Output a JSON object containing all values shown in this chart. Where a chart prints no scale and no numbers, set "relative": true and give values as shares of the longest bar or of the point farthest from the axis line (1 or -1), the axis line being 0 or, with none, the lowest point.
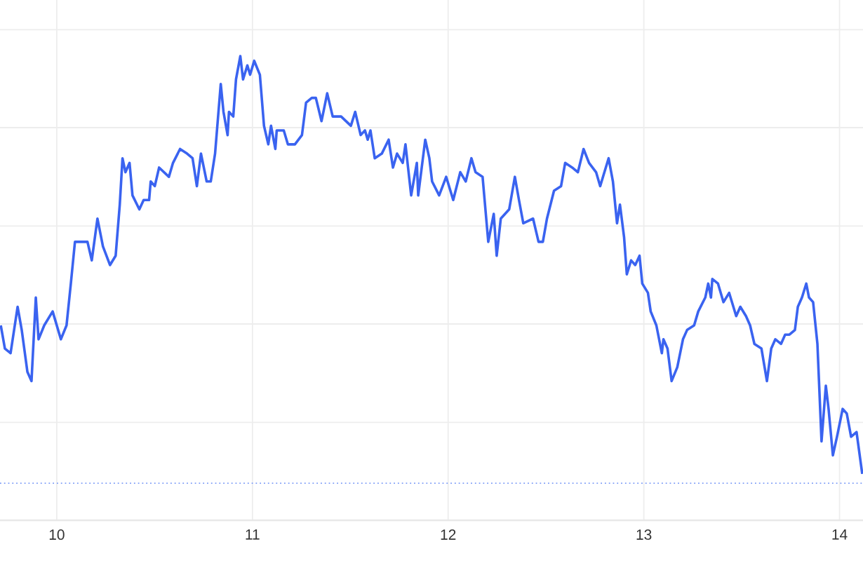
{
  "chart_data": {
    "type": "line",
    "relative": true,
    "grid": true,
    "xlim": [
      9.71,
      14.12
    ],
    "xticks": [
      10,
      11,
      12,
      13,
      14
    ],
    "x": [
      9.714,
      9.735,
      9.764,
      9.8,
      9.821,
      9.85,
      9.871,
      9.893,
      9.907,
      9.936,
      9.979,
      10.021,
      10.05,
      10.072,
      10.093,
      10.129,
      10.157,
      10.179,
      10.208,
      10.236,
      10.272,
      10.301,
      10.322,
      10.336,
      10.351,
      10.372,
      10.387,
      10.422,
      10.444,
      10.472,
      10.48,
      10.501,
      10.523,
      10.573,
      10.594,
      10.63,
      10.666,
      10.694,
      10.716,
      10.737,
      10.766,
      10.787,
      10.809,
      10.838,
      10.852,
      10.873,
      10.88,
      10.902,
      10.916,
      10.938,
      10.952,
      10.974,
      10.988,
      11.009,
      11.038,
      11.059,
      11.081,
      11.095,
      11.117,
      11.124,
      11.16,
      11.181,
      11.217,
      11.253,
      11.274,
      11.303,
      11.324,
      11.353,
      11.382,
      11.41,
      11.432,
      11.453,
      11.503,
      11.525,
      11.553,
      11.575,
      11.589,
      11.603,
      11.625,
      11.661,
      11.696,
      11.718,
      11.739,
      11.768,
      11.782,
      11.811,
      11.84,
      11.847,
      11.883,
      11.904,
      11.918,
      11.954,
      11.99,
      12.026,
      12.062,
      12.09,
      12.119,
      12.14,
      12.176,
      12.205,
      12.233,
      12.248,
      12.269,
      12.312,
      12.341,
      12.362,
      12.384,
      12.434,
      12.462,
      12.484,
      12.505,
      12.541,
      12.577,
      12.598,
      12.634,
      12.663,
      12.692,
      12.72,
      12.756,
      12.777,
      12.82,
      12.842,
      12.863,
      12.878,
      12.899,
      12.913,
      12.935,
      12.956,
      12.978,
      12.992,
      13.021,
      13.035,
      13.064,
      13.092,
      13.1,
      13.121,
      13.142,
      13.171,
      13.2,
      13.221,
      13.257,
      13.278,
      13.314,
      13.329,
      13.343,
      13.35,
      13.379,
      13.407,
      13.436,
      13.472,
      13.493,
      13.522,
      13.543,
      13.565,
      13.601,
      13.629,
      13.651,
      13.672,
      13.701,
      13.722,
      13.744,
      13.772,
      13.787,
      13.808,
      13.83,
      13.844,
      13.865,
      13.887,
      13.908,
      13.93,
      13.944,
      13.966,
      13.987,
      14.016,
      14.037,
      14.059,
      14.087,
      14.116
    ],
    "series": [
      {
        "color": "#3a63f0",
        "values": [
          0.42,
          0.37,
          0.36,
          0.46,
          0.41,
          0.32,
          0.3,
          0.48,
          0.39,
          0.42,
          0.45,
          0.39,
          0.42,
          0.51,
          0.6,
          0.6,
          0.6,
          0.56,
          0.65,
          0.59,
          0.55,
          0.57,
          0.68,
          0.78,
          0.75,
          0.77,
          0.7,
          0.67,
          0.69,
          0.69,
          0.73,
          0.72,
          0.76,
          0.74,
          0.77,
          0.8,
          0.79,
          0.78,
          0.72,
          0.79,
          0.73,
          0.73,
          0.79,
          0.94,
          0.88,
          0.83,
          0.88,
          0.87,
          0.95,
          1,
          0.95,
          0.98,
          0.96,
          0.99,
          0.96,
          0.85,
          0.81,
          0.85,
          0.8,
          0.84,
          0.84,
          0.81,
          0.81,
          0.83,
          0.9,
          0.91,
          0.91,
          0.86,
          0.92,
          0.87,
          0.87,
          0.87,
          0.85,
          0.88,
          0.83,
          0.84,
          0.82,
          0.84,
          0.78,
          0.79,
          0.82,
          0.76,
          0.79,
          0.77,
          0.81,
          0.7,
          0.77,
          0.7,
          0.82,
          0.78,
          0.73,
          0.7,
          0.74,
          0.69,
          0.75,
          0.73,
          0.78,
          0.75,
          0.74,
          0.6,
          0.66,
          0.57,
          0.65,
          0.67,
          0.74,
          0.69,
          0.64,
          0.65,
          0.6,
          0.6,
          0.65,
          0.71,
          0.72,
          0.77,
          0.76,
          0.75,
          0.8,
          0.77,
          0.75,
          0.72,
          0.78,
          0.73,
          0.64,
          0.68,
          0.61,
          0.53,
          0.56,
          0.55,
          0.57,
          0.51,
          0.49,
          0.45,
          0.42,
          0.36,
          0.39,
          0.37,
          0.3,
          0.33,
          0.39,
          0.41,
          0.42,
          0.45,
          0.48,
          0.51,
          0.48,
          0.52,
          0.51,
          0.47,
          0.49,
          0.44,
          0.46,
          0.44,
          0.42,
          0.38,
          0.37,
          0.3,
          0.37,
          0.39,
          0.38,
          0.4,
          0.4,
          0.41,
          0.46,
          0.48,
          0.51,
          0.48,
          0.47,
          0.38,
          0.17,
          0.29,
          0.24,
          0.14,
          0.18,
          0.24,
          0.23,
          0.18,
          0.19,
          0.1
        ]
      }
    ],
    "tick_labels": "x",
    "ref_lines": [
      {
        "axis": "y",
        "value": 0.08,
        "color": "#7f9ef7",
        "line_style": "dotted"
      }
    ]
  }
}
